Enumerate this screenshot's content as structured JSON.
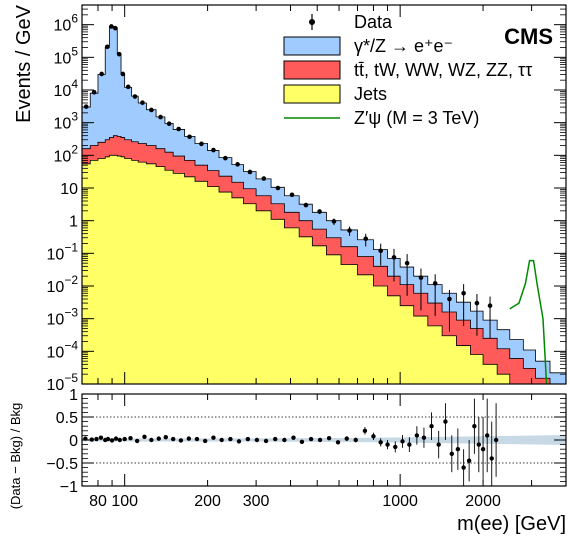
{
  "figure": {
    "experiment_label": "CMS"
  },
  "chart_data": [
    {
      "type": "area",
      "subtype": "stacked-histogram",
      "xlabel": "m(ee) [GeV]",
      "ylabel": "Events / GeV",
      "xscale": "log",
      "yscale": "log",
      "xlim": [
        70,
        4000
      ],
      "ylim": [
        1e-05,
        4000000
      ],
      "legend_position": "top-right",
      "xticks": [
        {
          "value": 80,
          "label": "80"
        },
        {
          "value": 100,
          "label": "100"
        },
        {
          "value": 200,
          "label": "200"
        },
        {
          "value": 300,
          "label": "300"
        },
        {
          "value": 1000,
          "label": "1000"
        },
        {
          "value": 2000,
          "label": "2000"
        }
      ],
      "yticks": [
        {
          "value": 1e-05,
          "base": "10",
          "exp": "−5"
        },
        {
          "value": 0.0001,
          "base": "10",
          "exp": "−4"
        },
        {
          "value": 0.001,
          "base": "10",
          "exp": "−3"
        },
        {
          "value": 0.01,
          "base": "10",
          "exp": "−2"
        },
        {
          "value": 0.1,
          "base": "10",
          "exp": "−1"
        },
        {
          "value": 1,
          "base": "1",
          "exp": ""
        },
        {
          "value": 10,
          "base": "10",
          "exp": ""
        },
        {
          "value": 100,
          "base": "10",
          "exp": "2"
        },
        {
          "value": 1000,
          "base": "10",
          "exp": "3"
        },
        {
          "value": 10000,
          "base": "10",
          "exp": "4"
        },
        {
          "value": 100000,
          "base": "10",
          "exp": "5"
        },
        {
          "value": 1000000,
          "base": "10",
          "exp": "6"
        }
      ],
      "legend": [
        {
          "label": "Data",
          "kind": "marker"
        },
        {
          "label": "γ*/Z → e⁺e⁻",
          "kind": "fill",
          "color": "#a0cbff"
        },
        {
          "label": "tt̄, tW, WW, WZ, ZZ, ττ",
          "kind": "fill",
          "color": "#ff5b5b"
        },
        {
          "label": "Jets",
          "kind": "fill",
          "color": "#ffff66"
        },
        {
          "label": "Z′ψ (M = 3 TeV)",
          "kind": "line",
          "color": "#008a00"
        }
      ],
      "colors": {
        "dy": "#a0cbff",
        "top": "#ff5b5b",
        "jets": "#ffff66",
        "signal": "#008a00",
        "data": "#000000"
      },
      "bin_edges": [
        70,
        75,
        80,
        85,
        88,
        91,
        94,
        97,
        100,
        106,
        112,
        120,
        130,
        140,
        150,
        165,
        180,
        200,
        220,
        245,
        270,
        300,
        340,
        380,
        430,
        480,
        540,
        610,
        700,
        800,
        900,
        1000,
        1120,
        1260,
        1420,
        1600,
        1800,
        2000,
        2250,
        2500,
        2800,
        3100,
        3500,
        4000
      ],
      "stack_totals": {
        "jets": [
          55,
          70,
          80,
          90,
          100,
          100,
          95,
          90,
          80,
          70,
          62,
          55,
          45,
          35,
          28,
          22,
          16,
          11,
          7.5,
          5,
          3.3,
          2.0,
          1.1,
          0.6,
          0.32,
          0.17,
          0.09,
          0.045,
          0.022,
          0.01,
          0.005,
          0.0025,
          0.0012,
          0.0006,
          0.0003,
          0.00015,
          8e-05,
          4e-05,
          2e-05,
          1e-05,
          1e-05,
          1e-05,
          1e-05
        ],
        "top": [
          160,
          200,
          250,
          300,
          350,
          400,
          380,
          350,
          300,
          260,
          230,
          200,
          160,
          125,
          95,
          70,
          50,
          34,
          23,
          15,
          9.5,
          5.8,
          3.3,
          1.8,
          1.0,
          0.55,
          0.3,
          0.16,
          0.08,
          0.04,
          0.02,
          0.011,
          0.006,
          0.003,
          0.0016,
          0.0009,
          0.0005,
          0.00025,
          0.00012,
          6e-05,
          3e-05,
          1.5e-05,
          1e-05
        ],
        "dy": [
          3000,
          8000,
          30000,
          200000,
          900000,
          800000,
          130000,
          30000,
          12000,
          6500,
          4000,
          2500,
          1500,
          950,
          620,
          380,
          230,
          140,
          85,
          52,
          32,
          19,
          10.5,
          5.8,
          3.2,
          1.8,
          1.0,
          0.52,
          0.26,
          0.13,
          0.07,
          0.038,
          0.02,
          0.011,
          0.006,
          0.0032,
          0.0017,
          0.0009,
          0.00046,
          0.00023,
          0.00011,
          5e-05,
          2.2e-05
        ]
      },
      "data_points": [
        {
          "x": 72.5,
          "y": 3100
        },
        {
          "x": 77.5,
          "y": 8500
        },
        {
          "x": 82.5,
          "y": 31000
        },
        {
          "x": 86.5,
          "y": 210000
        },
        {
          "x": 89.5,
          "y": 880000
        },
        {
          "x": 92.5,
          "y": 780000
        },
        {
          "x": 95.5,
          "y": 125000
        },
        {
          "x": 98.5,
          "y": 31000
        },
        {
          "x": 103,
          "y": 12500
        },
        {
          "x": 109,
          "y": 6300
        },
        {
          "x": 116,
          "y": 4100
        },
        {
          "x": 125,
          "y": 2450
        },
        {
          "x": 135,
          "y": 1480
        },
        {
          "x": 145,
          "y": 930
        },
        {
          "x": 157,
          "y": 640
        },
        {
          "x": 172,
          "y": 370
        },
        {
          "x": 190,
          "y": 225
        },
        {
          "x": 210,
          "y": 145
        },
        {
          "x": 232,
          "y": 82
        },
        {
          "x": 257,
          "y": 53
        },
        {
          "x": 285,
          "y": 31
        },
        {
          "x": 320,
          "y": 19.5
        },
        {
          "x": 360,
          "y": 10
        },
        {
          "x": 405,
          "y": 6.2
        },
        {
          "x": 455,
          "y": 3.0
        },
        {
          "x": 510,
          "y": 1.9
        },
        {
          "x": 575,
          "y": 0.95
        },
        {
          "x": 655,
          "y": 0.5
        },
        {
          "x": 750,
          "y": 0.28
        },
        {
          "x": 850,
          "y": 0.12
        },
        {
          "x": 950,
          "y": 0.075
        },
        {
          "x": 1060,
          "y": 0.05
        },
        {
          "x": 1190,
          "y": 0.018
        },
        {
          "x": 1340,
          "y": 0.012
        },
        {
          "x": 1510,
          "y": 0.004
        },
        {
          "x": 1700,
          "y": 0.006
        },
        {
          "x": 1900,
          "y": 0.003
        },
        {
          "x": 2120,
          "y": 0.0025
        }
      ],
      "signal_curve": [
        {
          "x": 2500,
          "y": 0.002
        },
        {
          "x": 2700,
          "y": 0.003
        },
        {
          "x": 2850,
          "y": 0.012
        },
        {
          "x": 2950,
          "y": 0.06
        },
        {
          "x": 3050,
          "y": 0.06
        },
        {
          "x": 3150,
          "y": 0.01
        },
        {
          "x": 3300,
          "y": 0.001
        },
        {
          "x": 3400,
          "y": 1e-05
        }
      ]
    },
    {
      "type": "scatter",
      "subtype": "ratio-panel",
      "xlabel": "m(ee) [GeV]",
      "ylabel": "(Data − Bkg) / Bkg",
      "xscale": "log",
      "xlim": [
        70,
        4000
      ],
      "ylim": [
        -1,
        1
      ],
      "reference_lines": [
        0.5,
        -0.5
      ],
      "yticks": [
        {
          "value": 1,
          "label": "1"
        },
        {
          "value": 0.5,
          "label": "0.5"
        },
        {
          "value": 0,
          "label": "0"
        },
        {
          "value": -0.5,
          "label": "−0.5"
        },
        {
          "value": -1,
          "label": "−1"
        }
      ],
      "uncertainty_band": [
        {
          "x": 70,
          "half_width": 0.03
        },
        {
          "x": 300,
          "half_width": 0.035
        },
        {
          "x": 800,
          "half_width": 0.05
        },
        {
          "x": 1500,
          "half_width": 0.07
        },
        {
          "x": 2500,
          "half_width": 0.09
        },
        {
          "x": 4000,
          "half_width": 0.11
        }
      ],
      "points": [
        {
          "x": 72,
          "y": 0.03,
          "err": 0.03
        },
        {
          "x": 76,
          "y": 0.01,
          "err": 0.03
        },
        {
          "x": 79,
          "y": 0.02,
          "err": 0.02
        },
        {
          "x": 82,
          "y": 0.05,
          "err": 0.02
        },
        {
          "x": 85,
          "y": 0.0,
          "err": 0.01
        },
        {
          "x": 87,
          "y": 0.02,
          "err": 0.01
        },
        {
          "x": 90,
          "y": -0.01,
          "err": 0.01
        },
        {
          "x": 93,
          "y": 0.03,
          "err": 0.01
        },
        {
          "x": 96,
          "y": 0.0,
          "err": 0.01
        },
        {
          "x": 100,
          "y": 0.02,
          "err": 0.01
        },
        {
          "x": 105,
          "y": 0.04,
          "err": 0.01
        },
        {
          "x": 111,
          "y": -0.02,
          "err": 0.01
        },
        {
          "x": 118,
          "y": 0.07,
          "err": 0.01
        },
        {
          "x": 125,
          "y": 0.0,
          "err": 0.01
        },
        {
          "x": 133,
          "y": 0.03,
          "err": 0.01
        },
        {
          "x": 141,
          "y": 0.06,
          "err": 0.01
        },
        {
          "x": 150,
          "y": 0.02,
          "err": 0.01
        },
        {
          "x": 160,
          "y": -0.01,
          "err": 0.01
        },
        {
          "x": 171,
          "y": 0.03,
          "err": 0.01
        },
        {
          "x": 183,
          "y": 0.02,
          "err": 0.01
        },
        {
          "x": 196,
          "y": -0.02,
          "err": 0.01
        },
        {
          "x": 210,
          "y": 0.05,
          "err": 0.01
        },
        {
          "x": 225,
          "y": 0.0,
          "err": 0.02
        },
        {
          "x": 242,
          "y": 0.02,
          "err": 0.02
        },
        {
          "x": 260,
          "y": -0.03,
          "err": 0.02
        },
        {
          "x": 280,
          "y": 0.02,
          "err": 0.02
        },
        {
          "x": 302,
          "y": 0.0,
          "err": 0.02
        },
        {
          "x": 326,
          "y": -0.02,
          "err": 0.02
        },
        {
          "x": 352,
          "y": 0.02,
          "err": 0.02
        },
        {
          "x": 380,
          "y": 0.0,
          "err": 0.02
        },
        {
          "x": 410,
          "y": 0.05,
          "err": 0.03
        },
        {
          "x": 440,
          "y": -0.04,
          "err": 0.03
        },
        {
          "x": 475,
          "y": 0.02,
          "err": 0.03
        },
        {
          "x": 512,
          "y": 0.0,
          "err": 0.03
        },
        {
          "x": 552,
          "y": 0.04,
          "err": 0.04
        },
        {
          "x": 595,
          "y": -0.05,
          "err": 0.04
        },
        {
          "x": 640,
          "y": 0.03,
          "err": 0.05
        },
        {
          "x": 690,
          "y": 0.0,
          "err": 0.05
        },
        {
          "x": 745,
          "y": 0.2,
          "err": 0.08
        },
        {
          "x": 800,
          "y": 0.08,
          "err": 0.08
        },
        {
          "x": 850,
          "y": -0.05,
          "err": 0.09
        },
        {
          "x": 900,
          "y": -0.1,
          "err": 0.1
        },
        {
          "x": 960,
          "y": -0.15,
          "err": 0.12
        },
        {
          "x": 1020,
          "y": -0.03,
          "err": 0.14
        },
        {
          "x": 1080,
          "y": -0.1,
          "err": 0.16
        },
        {
          "x": 1150,
          "y": 0.1,
          "err": 0.2
        },
        {
          "x": 1220,
          "y": 0.05,
          "err": 0.22
        },
        {
          "x": 1300,
          "y": 0.3,
          "err": 0.3
        },
        {
          "x": 1380,
          "y": -0.1,
          "err": 0.3
        },
        {
          "x": 1460,
          "y": 0.4,
          "err": 0.4
        },
        {
          "x": 1540,
          "y": -0.3,
          "err": 0.4
        },
        {
          "x": 1620,
          "y": -0.2,
          "err": 0.45
        },
        {
          "x": 1700,
          "y": -0.6,
          "err": 0.4
        },
        {
          "x": 1780,
          "y": -0.45,
          "err": 0.45
        },
        {
          "x": 1860,
          "y": 0.3,
          "err": 0.6
        },
        {
          "x": 1930,
          "y": -0.1,
          "err": 0.6
        },
        {
          "x": 2000,
          "y": -0.2,
          "err": 0.7
        },
        {
          "x": 2070,
          "y": 0.1,
          "err": 0.8
        },
        {
          "x": 2150,
          "y": -0.4,
          "err": 0.8
        },
        {
          "x": 2230,
          "y": 0.0,
          "err": 0.8
        }
      ]
    }
  ]
}
